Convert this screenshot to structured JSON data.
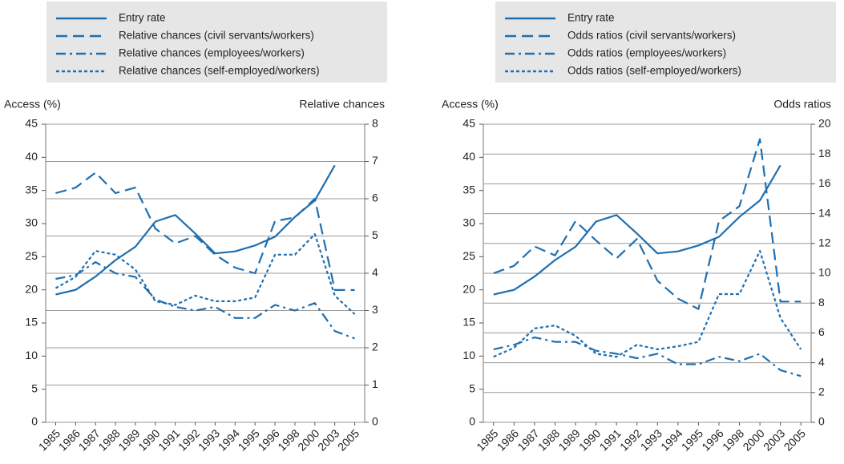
{
  "chart_data": [
    {
      "type": "line",
      "ylabel": "Access (%)",
      "y2label": "Relative chances",
      "categories": [
        "1985",
        "1986",
        "1987",
        "1988",
        "1989",
        "1990",
        "1991",
        "1992",
        "1993",
        "1994",
        "1995",
        "1996",
        "1998",
        "2000",
        "2003",
        "2005"
      ],
      "series": [
        {
          "name": "Entry rate",
          "color": "#1f6fb0",
          "style": "solid",
          "values": [
            19.3,
            20.0,
            22.0,
            24.5,
            26.5,
            30.3,
            31.3,
            28.5,
            25.5,
            25.8,
            26.7,
            28.0,
            31.0,
            33.5,
            38.8,
            null
          ]
        },
        {
          "name": "Relative chances (civil servants/workers)",
          "color": "#1f6fb0",
          "style": "dashed",
          "axis": "y2",
          "values": [
            6.15,
            6.3,
            6.7,
            6.15,
            6.3,
            5.2,
            4.8,
            5.0,
            4.5,
            4.15,
            4.0,
            5.4,
            5.5,
            6.0,
            3.55,
            3.55
          ]
        },
        {
          "name": "Relative chances (employees/workers)",
          "color": "#1f6fb0",
          "style": "dashdot",
          "axis": "y2",
          "values": [
            3.85,
            3.95,
            4.3,
            4.0,
            3.9,
            3.3,
            3.1,
            3.0,
            3.1,
            2.8,
            2.8,
            3.15,
            3.0,
            3.2,
            2.45,
            2.25
          ]
        },
        {
          "name": "Relative chances (self-employed/workers)",
          "color": "#1f6fb0",
          "style": "dotted",
          "axis": "y2",
          "values": [
            3.6,
            3.9,
            4.6,
            4.5,
            4.1,
            3.25,
            3.15,
            3.4,
            3.25,
            3.25,
            3.35,
            4.5,
            4.5,
            5.05,
            3.4,
            2.9
          ]
        }
      ],
      "ylim": [
        0,
        45
      ],
      "yticks": [
        0,
        5,
        10,
        15,
        20,
        25,
        30,
        35,
        40,
        45
      ],
      "y2lim": [
        0,
        8
      ],
      "y2ticks": [
        0,
        1,
        2,
        3,
        4,
        5,
        6,
        7,
        8
      ],
      "grid": true
    },
    {
      "type": "line",
      "ylabel": "Access (%)",
      "y2label": "Odds ratios",
      "categories": [
        "1985",
        "1986",
        "1987",
        "1988",
        "1989",
        "1990",
        "1991",
        "1992",
        "1993",
        "1994",
        "1995",
        "1996",
        "1998",
        "2000",
        "2003",
        "2005"
      ],
      "series": [
        {
          "name": "Entry rate",
          "color": "#1f6fb0",
          "style": "solid",
          "values": [
            19.3,
            20.0,
            22.0,
            24.5,
            26.5,
            30.3,
            31.3,
            28.5,
            25.5,
            25.8,
            26.7,
            28.0,
            31.0,
            33.5,
            38.8,
            null
          ]
        },
        {
          "name": "Odds ratios (civil servants/workers)",
          "color": "#1f6fb0",
          "style": "dashed",
          "axis": "y2",
          "values": [
            10.0,
            10.5,
            11.8,
            11.2,
            13.5,
            12.2,
            11.0,
            12.3,
            9.5,
            8.3,
            7.6,
            13.5,
            14.5,
            19.0,
            8.1,
            8.1
          ]
        },
        {
          "name": "Odds ratios (employees/workers)",
          "color": "#1f6fb0",
          "style": "dashdot",
          "axis": "y2",
          "values": [
            4.9,
            5.2,
            5.7,
            5.4,
            5.4,
            4.8,
            4.6,
            4.3,
            4.6,
            3.9,
            3.9,
            4.4,
            4.1,
            4.6,
            3.5,
            3.1
          ]
        },
        {
          "name": "Odds ratios (self-employed/workers)",
          "color": "#1f6fb0",
          "style": "dotted",
          "axis": "y2",
          "values": [
            4.4,
            5.0,
            6.3,
            6.5,
            5.8,
            4.6,
            4.4,
            5.2,
            4.9,
            5.1,
            5.4,
            8.6,
            8.6,
            11.5,
            7.0,
            4.9
          ]
        }
      ],
      "ylim": [
        0,
        45
      ],
      "yticks": [
        0,
        5,
        10,
        15,
        20,
        25,
        30,
        35,
        40,
        45
      ],
      "y2lim": [
        0,
        20
      ],
      "y2ticks": [
        0,
        2,
        4,
        6,
        8,
        10,
        12,
        14,
        16,
        18,
        20
      ],
      "grid": true
    }
  ]
}
